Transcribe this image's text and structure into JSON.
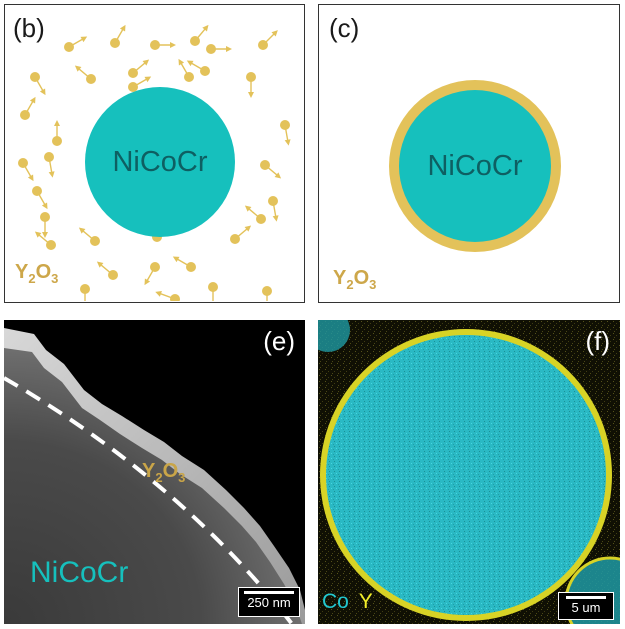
{
  "panels": {
    "b": {
      "label": "(b)",
      "core_label": "NiCoCr",
      "coating_label": {
        "main1": "Y",
        "sub1": "2",
        "main2": "O",
        "sub2": "3"
      }
    },
    "c": {
      "label": "(c)",
      "core_label": "NiCoCr",
      "coating_label": {
        "main1": "Y",
        "sub1": "2",
        "main2": "O",
        "sub2": "3"
      }
    },
    "e": {
      "label": "(e)",
      "coating_label": {
        "main1": "Y",
        "sub1": "2",
        "main2": "O",
        "sub2": "3"
      },
      "core_label": "NiCoCr",
      "scale_bar": "250 nm"
    },
    "f": {
      "label": "(f)",
      "legend_co": "Co",
      "legend_y": "Y",
      "scale_bar": "5 um"
    }
  },
  "colors": {
    "core": "#16c0bd",
    "core_text": "#0e5f62",
    "yttria": "#e3c25a",
    "yttria_text": "#cda74a",
    "co_map": "#22c8d0",
    "y_map": "#f2ee2a"
  }
}
